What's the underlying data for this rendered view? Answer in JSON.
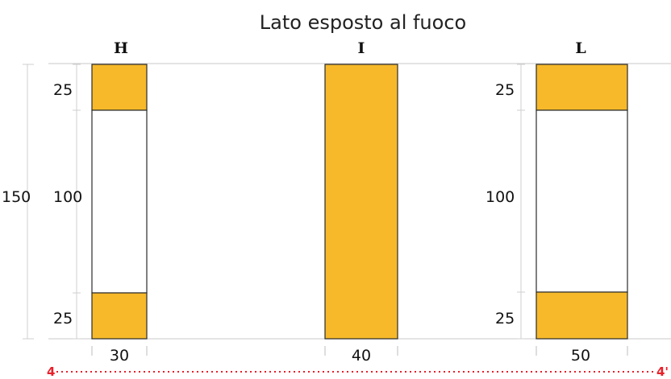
{
  "caption": "Lato esposto al fuoco",
  "colors": {
    "fill": "#F7B92A",
    "outline": "#2b2b2b",
    "guide": "#c9c9c9",
    "section_line": "#e8202a"
  },
  "sections": [
    {
      "label": "H",
      "width_label": "30",
      "top_label": "25",
      "mid_label": "100",
      "bottom_label": "25"
    },
    {
      "label": "I",
      "width_label": "40"
    },
    {
      "label": "L",
      "width_label": "50",
      "top_label": "25",
      "mid_label": "100",
      "bottom_label": "25"
    }
  ],
  "total_height_label": "150",
  "section_line": {
    "start_label": "4",
    "end_label": "4'"
  }
}
